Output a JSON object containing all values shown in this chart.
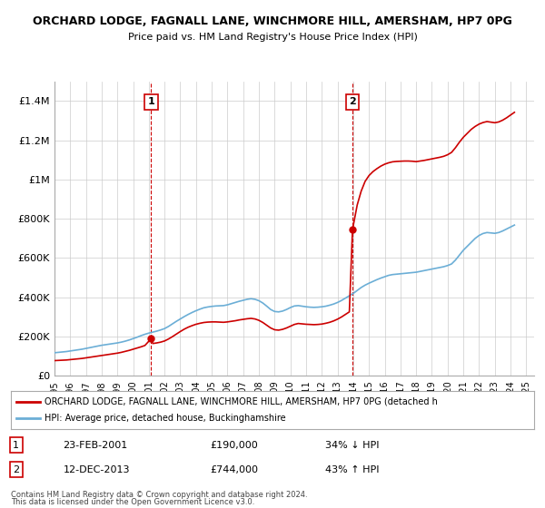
{
  "title": "ORCHARD LODGE, FAGNALL LANE, WINCHMORE HILL, AMERSHAM, HP7 0PG",
  "subtitle": "Price paid vs. HM Land Registry's House Price Index (HPI)",
  "hpi_label": "HPI: Average price, detached house, Buckinghamshire",
  "property_label": "ORCHARD LODGE, FAGNALL LANE, WINCHMORE HILL, AMERSHAM, HP7 0PG (detached h",
  "sale1_label": "23-FEB-2001",
  "sale1_price": "£190,000",
  "sale1_pct": "34% ↓ HPI",
  "sale1_year": 2001.15,
  "sale1_value": 190000,
  "sale2_label": "12-DEC-2013",
  "sale2_price": "£744,000",
  "sale2_pct": "43% ↑ HPI",
  "sale2_year": 2013.95,
  "sale2_value": 744000,
  "hpi_color": "#6baed6",
  "property_color": "#cc0000",
  "vline_color": "#cc0000",
  "background_color": "#ffffff",
  "grid_color": "#cccccc",
  "ylim": [
    0,
    1500000
  ],
  "xlim_start": 1995,
  "xlim_end": 2025.5,
  "footer_line1": "Contains HM Land Registry data © Crown copyright and database right 2024.",
  "footer_line2": "This data is licensed under the Open Government Licence v3.0.",
  "hpi_years": [
    1995,
    1995.25,
    1995.5,
    1995.75,
    1996,
    1996.25,
    1996.5,
    1996.75,
    1997,
    1997.25,
    1997.5,
    1997.75,
    1998,
    1998.25,
    1998.5,
    1998.75,
    1999,
    1999.25,
    1999.5,
    1999.75,
    2000,
    2000.25,
    2000.5,
    2000.75,
    2001,
    2001.25,
    2001.5,
    2001.75,
    2002,
    2002.25,
    2002.5,
    2002.75,
    2003,
    2003.25,
    2003.5,
    2003.75,
    2004,
    2004.25,
    2004.5,
    2004.75,
    2005,
    2005.25,
    2005.5,
    2005.75,
    2006,
    2006.25,
    2006.5,
    2006.75,
    2007,
    2007.25,
    2007.5,
    2007.75,
    2008,
    2008.25,
    2008.5,
    2008.75,
    2009,
    2009.25,
    2009.5,
    2009.75,
    2010,
    2010.25,
    2010.5,
    2010.75,
    2011,
    2011.25,
    2011.5,
    2011.75,
    2012,
    2012.25,
    2012.5,
    2012.75,
    2013,
    2013.25,
    2013.5,
    2013.75,
    2014,
    2014.25,
    2014.5,
    2014.75,
    2015,
    2015.25,
    2015.5,
    2015.75,
    2016,
    2016.25,
    2016.5,
    2016.75,
    2017,
    2017.25,
    2017.5,
    2017.75,
    2018,
    2018.25,
    2018.5,
    2018.75,
    2019,
    2019.25,
    2019.5,
    2019.75,
    2020,
    2020.25,
    2020.5,
    2020.75,
    2021,
    2021.25,
    2021.5,
    2021.75,
    2022,
    2022.25,
    2022.5,
    2022.75,
    2023,
    2023.25,
    2023.5,
    2023.75,
    2024,
    2024.25
  ],
  "hpi_values": [
    118000,
    120000,
    122000,
    124000,
    127000,
    130000,
    133000,
    136000,
    140000,
    144000,
    148000,
    152000,
    156000,
    159000,
    162000,
    165000,
    168000,
    172000,
    177000,
    183000,
    190000,
    197000,
    205000,
    212000,
    218000,
    223000,
    228000,
    234000,
    241000,
    252000,
    265000,
    278000,
    290000,
    302000,
    313000,
    323000,
    332000,
    340000,
    347000,
    351000,
    354000,
    356000,
    357000,
    358000,
    362000,
    368000,
    374000,
    380000,
    385000,
    390000,
    393000,
    390000,
    383000,
    371000,
    355000,
    338000,
    328000,
    326000,
    330000,
    338000,
    348000,
    356000,
    358000,
    355000,
    352000,
    350000,
    349000,
    350000,
    352000,
    355000,
    360000,
    366000,
    374000,
    384000,
    396000,
    408000,
    420000,
    435000,
    450000,
    462000,
    472000,
    481000,
    490000,
    498000,
    505000,
    512000,
    516000,
    518000,
    520000,
    522000,
    524000,
    526000,
    528000,
    532000,
    536000,
    540000,
    544000,
    548000,
    552000,
    556000,
    562000,
    570000,
    590000,
    615000,
    640000,
    660000,
    680000,
    700000,
    715000,
    725000,
    730000,
    728000,
    726000,
    730000,
    738000,
    748000,
    758000,
    768000
  ],
  "prop_years": [
    1995,
    1995.25,
    1995.5,
    1995.75,
    1996,
    1996.25,
    1996.5,
    1996.75,
    1997,
    1997.25,
    1997.5,
    1997.75,
    1998,
    1998.25,
    1998.5,
    1998.75,
    1999,
    1999.25,
    1999.5,
    1999.75,
    2000,
    2000.25,
    2000.5,
    2000.75,
    2001.15,
    2001.25,
    2001.5,
    2001.75,
    2002,
    2002.25,
    2002.5,
    2002.75,
    2003,
    2003.25,
    2003.5,
    2003.75,
    2004,
    2004.25,
    2004.5,
    2004.75,
    2005,
    2005.25,
    2005.5,
    2005.75,
    2006,
    2006.25,
    2006.5,
    2006.75,
    2007,
    2007.25,
    2007.5,
    2007.75,
    2008,
    2008.25,
    2008.5,
    2008.75,
    2009,
    2009.25,
    2009.5,
    2009.75,
    2010,
    2010.25,
    2010.5,
    2010.75,
    2011,
    2011.25,
    2011.5,
    2011.75,
    2012,
    2012.25,
    2012.5,
    2012.75,
    2013,
    2013.25,
    2013.5,
    2013.75,
    2013.95,
    2014.25,
    2014.5,
    2014.75,
    2015,
    2015.25,
    2015.5,
    2015.75,
    2016,
    2016.25,
    2016.5,
    2016.75,
    2017,
    2017.25,
    2017.5,
    2017.75,
    2018,
    2018.25,
    2018.5,
    2018.75,
    2019,
    2019.25,
    2019.5,
    2019.75,
    2020,
    2020.25,
    2020.5,
    2020.75,
    2021,
    2021.25,
    2021.5,
    2021.75,
    2022,
    2022.25,
    2022.5,
    2022.75,
    2023,
    2023.25,
    2023.5,
    2023.75,
    2024,
    2024.25
  ],
  "prop_values": [
    78000,
    79000,
    80000,
    81000,
    83000,
    85000,
    87000,
    89000,
    92000,
    95000,
    98000,
    101000,
    104000,
    107000,
    110000,
    113000,
    116000,
    120000,
    125000,
    130000,
    136000,
    142000,
    148000,
    155000,
    190000,
    165000,
    168000,
    172000,
    178000,
    188000,
    200000,
    213000,
    226000,
    238000,
    248000,
    256000,
    263000,
    268000,
    272000,
    274000,
    275000,
    275000,
    274000,
    273000,
    275000,
    278000,
    281000,
    285000,
    288000,
    291000,
    293000,
    290000,
    283000,
    272000,
    258000,
    244000,
    235000,
    233000,
    237000,
    244000,
    253000,
    262000,
    267000,
    265000,
    263000,
    262000,
    261000,
    262000,
    264000,
    268000,
    273000,
    280000,
    289000,
    300000,
    313000,
    326000,
    744000,
    870000,
    940000,
    990000,
    1020000,
    1040000,
    1055000,
    1068000,
    1078000,
    1085000,
    1090000,
    1092000,
    1093000,
    1094000,
    1094000,
    1093000,
    1091000,
    1094000,
    1097000,
    1101000,
    1105000,
    1109000,
    1113000,
    1118000,
    1126000,
    1138000,
    1162000,
    1190000,
    1215000,
    1235000,
    1255000,
    1270000,
    1282000,
    1290000,
    1295000,
    1292000,
    1289000,
    1293000,
    1302000,
    1314000,
    1328000,
    1342000
  ],
  "yticks": [
    0,
    200000,
    400000,
    600000,
    800000,
    1000000,
    1200000,
    1400000
  ],
  "ytick_labels": [
    "£0",
    "£200K",
    "£400K",
    "£600K",
    "£800K",
    "£1M",
    "£1.2M",
    "£1.4M"
  ],
  "xticks": [
    1995,
    1996,
    1997,
    1998,
    1999,
    2000,
    2001,
    2002,
    2003,
    2004,
    2005,
    2006,
    2007,
    2008,
    2009,
    2010,
    2011,
    2012,
    2013,
    2014,
    2015,
    2016,
    2017,
    2018,
    2019,
    2020,
    2021,
    2022,
    2023,
    2024,
    2025
  ]
}
